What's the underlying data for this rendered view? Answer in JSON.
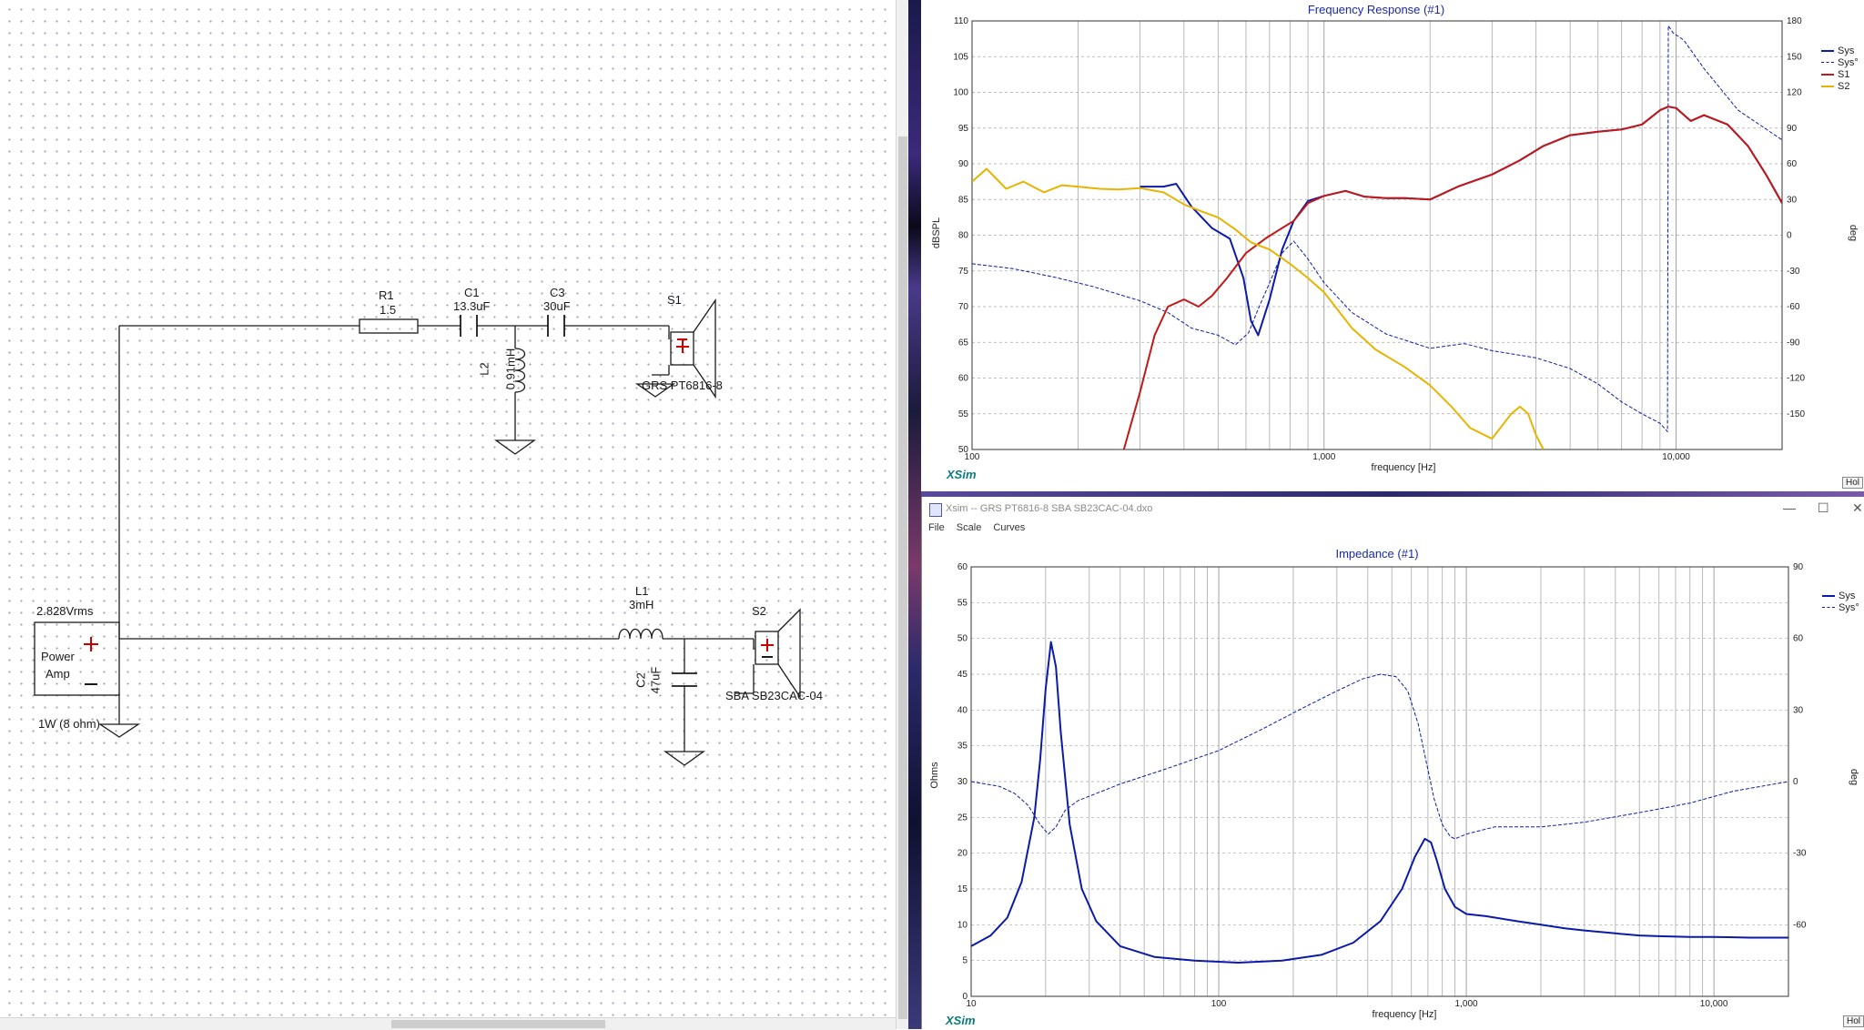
{
  "schematic": {
    "components": {
      "R1": {
        "name": "R1",
        "value": "1.5"
      },
      "C1": {
        "name": "C1",
        "value": "13.3uF"
      },
      "C3": {
        "name": "C3",
        "value": "30uF"
      },
      "L2": {
        "name": "L2",
        "value": "0.91mH"
      },
      "L1": {
        "name": "L1",
        "value": "3mH"
      },
      "C2": {
        "name": "C2",
        "value": "47uF"
      },
      "S1": {
        "name": "S1",
        "model": "GRS PT6816-8"
      },
      "S2": {
        "name": "S2",
        "model": "SBA SB23CAC-04"
      },
      "amp": {
        "line1": "Power",
        "line2": "Amp",
        "voltage": "2.828Vrms",
        "power": "1W (8 ohm)"
      }
    }
  },
  "windows": {
    "impedance": {
      "title": "Xsim -- GRS PT6816-8 SBA SB23CAC-04.dxo",
      "menu": [
        "File",
        "Scale",
        "Curves"
      ],
      "controls": {
        "minimize": "—",
        "maximize": "☐",
        "close": "✕"
      }
    },
    "hold_label": "Hol"
  },
  "colors": {
    "sys": "#0b1aa8",
    "s1": "#c21818",
    "s2": "#e8b400",
    "grid": "#b8b8b8",
    "accent": "#1a2aa8"
  },
  "chart_data": [
    {
      "type": "line",
      "title": "Frequency Response (#1)",
      "xlabel": "frequency [Hz]",
      "ylabel": "dBSPL",
      "y2label": "deg",
      "xscale": "log",
      "xlim": [
        100,
        20000
      ],
      "ylim": [
        50,
        110
      ],
      "y2lim": [
        -180,
        180
      ],
      "xticks": [
        "100",
        "1,000",
        "10,000"
      ],
      "yticks": [
        "50",
        "55",
        "60",
        "65",
        "70",
        "75",
        "80",
        "85",
        "90",
        "95",
        "100",
        "105",
        "110"
      ],
      "y2ticks": [
        "-150",
        "-120",
        "-90",
        "-60",
        "-30",
        "0",
        "30",
        "60",
        "90",
        "120",
        "150",
        "180"
      ],
      "legend_position": "top-right",
      "watermark": "XSim",
      "series": [
        {
          "name": "Sys",
          "axis": "left",
          "style": "solid",
          "x": [
            300,
            350,
            380,
            420,
            480,
            540,
            590,
            620,
            650,
            700,
            760,
            820,
            900,
            1000,
            1150,
            1300,
            1500,
            1700,
            2000,
            2400,
            3000,
            3600,
            4200,
            5000,
            6000,
            7000,
            8000,
            9000,
            9500,
            10000,
            11000,
            12000,
            14000,
            16000,
            18000,
            20000
          ],
          "y": [
            86.8,
            86.8,
            87.2,
            84,
            81,
            79.5,
            74,
            68,
            66,
            71,
            78,
            82,
            84.8,
            85.5,
            86.2,
            85.4,
            85.2,
            85.2,
            85.0,
            86.8,
            88.5,
            90.5,
            92.5,
            94.0,
            94.5,
            94.8,
            95.5,
            97.5,
            98.0,
            97.8,
            96.0,
            96.8,
            95.5,
            92.5,
            88.5,
            84.5
          ]
        },
        {
          "name": "Sys°",
          "axis": "right",
          "style": "dashed",
          "x": [
            100,
            130,
            170,
            220,
            300,
            360,
            420,
            500,
            560,
            610,
            650,
            700,
            760,
            820,
            900,
            1000,
            1200,
            1500,
            2000,
            2500,
            3000,
            4000,
            5000,
            6000,
            7000,
            8000,
            9000,
            9450,
            9500,
            9800,
            10500,
            12000,
            15000,
            20000
          ],
          "y": [
            -24,
            -28,
            -35,
            -43,
            -55,
            -65,
            -78,
            -84,
            -92,
            -82,
            -62,
            -40,
            -15,
            -5,
            -20,
            -40,
            -65,
            -83,
            -95,
            -91,
            -97,
            -103,
            -112,
            -125,
            -140,
            -150,
            -158,
            -165,
            176,
            170,
            164,
            140,
            105,
            80
          ]
        },
        {
          "name": "S1",
          "axis": "left",
          "style": "solid",
          "x": [
            270,
            300,
            330,
            360,
            400,
            440,
            480,
            530,
            600,
            680,
            760,
            820,
            900,
            1000,
            1150,
            1300,
            1500,
            1700,
            2000,
            2400,
            3000,
            3600,
            4200,
            5000,
            6000,
            7000,
            8000,
            9000,
            9500,
            10000,
            11000,
            12000,
            14000,
            16000,
            18000,
            20000
          ],
          "y": [
            50,
            58,
            66,
            70.0,
            71.0,
            70.0,
            71.5,
            74,
            77.5,
            79.5,
            81.0,
            82.0,
            84.5,
            85.5,
            86.2,
            85.4,
            85.2,
            85.2,
            85.0,
            86.8,
            88.5,
            90.5,
            92.5,
            94.0,
            94.5,
            94.8,
            95.5,
            97.5,
            98.0,
            97.8,
            96.0,
            96.8,
            95.5,
            92.5,
            88.5,
            84.5
          ]
        },
        {
          "name": "S2",
          "axis": "left",
          "style": "solid",
          "x": [
            100,
            110,
            125,
            140,
            160,
            180,
            200,
            230,
            260,
            300,
            350,
            400,
            450,
            500,
            560,
            620,
            700,
            800,
            900,
            1000,
            1200,
            1400,
            1700,
            2000,
            2300,
            2600,
            3000,
            3400,
            3600,
            3800,
            4000,
            4200
          ],
          "y": [
            87.5,
            89.3,
            86.5,
            87.5,
            86.0,
            87.0,
            86.8,
            86.5,
            86.4,
            86.6,
            86.0,
            84.3,
            83.3,
            82.5,
            80.8,
            79.0,
            78.0,
            76.0,
            74.0,
            72.0,
            67.0,
            64.0,
            61.5,
            59.0,
            56.0,
            53.0,
            51.5,
            55.0,
            56.0,
            55.0,
            52.0,
            50.0
          ]
        }
      ]
    },
    {
      "type": "line",
      "title": "Impedance (#1)",
      "xlabel": "frequency [Hz]",
      "ylabel": "Ohms",
      "y2label": "deg",
      "xscale": "log",
      "xlim": [
        10,
        20000
      ],
      "ylim": [
        0,
        60
      ],
      "y2lim": [
        -90,
        90
      ],
      "xticks": [
        "10",
        "100",
        "1,000",
        "10,000"
      ],
      "yticks": [
        "0",
        "5",
        "10",
        "15",
        "20",
        "25",
        "30",
        "35",
        "40",
        "45",
        "50",
        "55",
        "60"
      ],
      "y2ticks": [
        "-60",
        "-30",
        "0",
        "30",
        "60",
        "90"
      ],
      "legend_position": "top-right",
      "watermark": "XSim",
      "series": [
        {
          "name": "Sys",
          "axis": "left",
          "style": "solid",
          "x": [
            10,
            12,
            14,
            16,
            18,
            19,
            20,
            21,
            22,
            23,
            25,
            28,
            32,
            40,
            55,
            80,
            120,
            180,
            260,
            350,
            450,
            550,
            620,
            680,
            720,
            760,
            820,
            900,
            1000,
            1200,
            1600,
            2000,
            2500,
            3000,
            4000,
            5000,
            6000,
            8000,
            10000,
            14000,
            20000
          ],
          "y": [
            7,
            8.5,
            11,
            16,
            25,
            33,
            43,
            49.5,
            46,
            37,
            24,
            15,
            10.5,
            7,
            5.5,
            5,
            4.7,
            5,
            5.8,
            7.5,
            10.5,
            15,
            19.5,
            22,
            21.5,
            19,
            15,
            12.5,
            11.5,
            11.2,
            10.5,
            10,
            9.5,
            9.2,
            8.8,
            8.5,
            8.4,
            8.3,
            8.3,
            8.2,
            8.2
          ]
        },
        {
          "name": "Sys°",
          "axis": "right",
          "style": "dashed",
          "x": [
            10,
            13,
            15,
            17,
            19,
            20.5,
            22,
            24,
            27,
            32,
            40,
            60,
            100,
            150,
            220,
            300,
            380,
            450,
            520,
            580,
            640,
            690,
            740,
            800,
            860,
            900,
            1000,
            1300,
            2000,
            3000,
            5000,
            8000,
            12000,
            20000
          ],
          "y": [
            0,
            -2,
            -5,
            -10,
            -18,
            -22,
            -19,
            -12,
            -8,
            -5,
            -1,
            5,
            13,
            22,
            31,
            38,
            43,
            45,
            44,
            38,
            24,
            8,
            -7,
            -18,
            -23,
            -24,
            -22,
            -19,
            -19,
            -17,
            -13,
            -9,
            -4,
            0
          ]
        }
      ]
    }
  ]
}
